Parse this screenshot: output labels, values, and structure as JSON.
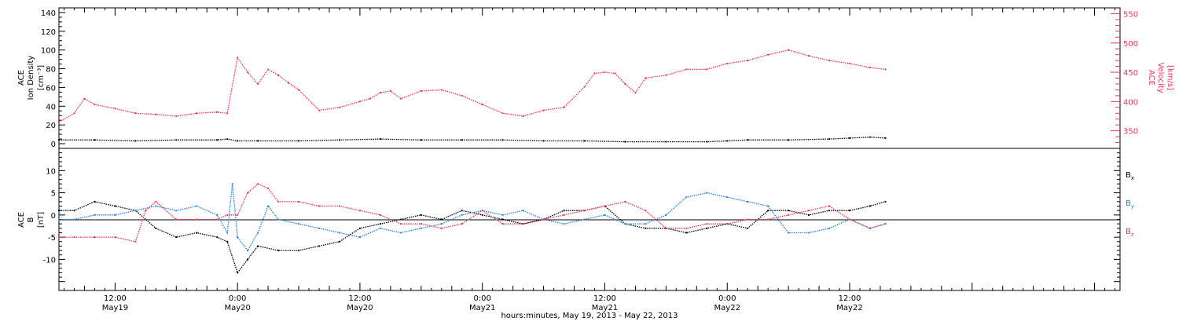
{
  "colors": {
    "black": "#000000",
    "pink": "#e8335e",
    "blue": "#1e82e0"
  },
  "x_axis": {
    "label": "hours:minutes, May 19, 2013 - May 22, 2013",
    "range_hours": [
      6.5,
      110.5
    ],
    "major_ticks": [
      {
        "hour": 12,
        "time": "12:00",
        "date": "May19"
      },
      {
        "hour": 24,
        "time": "0:00",
        "date": "May20"
      },
      {
        "hour": 36,
        "time": "12:00",
        "date": "May20"
      },
      {
        "hour": 48,
        "time": "0:00",
        "date": "May21"
      },
      {
        "hour": 60,
        "time": "12:00",
        "date": "May21"
      },
      {
        "hour": 72,
        "time": "0:00",
        "date": "May22"
      },
      {
        "hour": 84,
        "time": "12:00",
        "date": "May22"
      }
    ]
  },
  "top_panel": {
    "left_axis": {
      "line1": "ACE",
      "line2": "Ion Density",
      "line3": "[cm⁻³]",
      "ylim": [
        -5,
        145
      ],
      "ticks": [
        "0",
        "20",
        "40",
        "60",
        "80",
        "100",
        "120",
        "140"
      ]
    },
    "right_axis": {
      "line1": "ACE",
      "line2": "Velocity",
      "line3": "[km/s]",
      "ylim": [
        320,
        560
      ],
      "ticks": [
        "350",
        "400",
        "450",
        "500",
        "550"
      ]
    }
  },
  "bottom_panel": {
    "axis": {
      "line1": "ACE",
      "line2": "B",
      "line3": "[nT]",
      "ylim": [
        -17,
        15
      ],
      "ticks": [
        "-10",
        "-5",
        "0",
        "5",
        "10"
      ]
    },
    "legend": {
      "bx": "B",
      "bx_sub": "x",
      "by": "B",
      "by_sub": "y",
      "bz": "B",
      "bz_sub": "z"
    }
  },
  "chart_data": [
    {
      "type": "scatter",
      "title": "",
      "xlabel": "hours:minutes, May 19, 2013 - May 22, 2013",
      "ylabel": "ACE Ion Density [cm-3]",
      "ylim": [
        -5,
        145
      ],
      "series": [
        {
          "name": "Ion Density",
          "color": "#000000",
          "x": [
            6.5,
            10,
            14,
            18,
            22,
            23,
            24,
            26,
            30,
            34,
            38,
            42,
            46,
            50,
            54,
            58,
            62,
            66,
            70,
            72,
            74,
            78,
            82,
            84,
            86,
            87.5
          ],
          "y": [
            4,
            4,
            3,
            4,
            4,
            5,
            3,
            3,
            3,
            4,
            5,
            4,
            4,
            4,
            3,
            3,
            2,
            2,
            2,
            3,
            4,
            4,
            5,
            6,
            7,
            6
          ]
        }
      ]
    },
    {
      "type": "scatter",
      "ylabel": "ACE Velocity [km/s]",
      "ylim": [
        320,
        560
      ],
      "series": [
        {
          "name": "Velocity",
          "color": "#e8335e",
          "x": [
            6.5,
            8,
            9,
            10,
            12,
            14,
            16,
            18,
            20,
            22,
            23,
            24,
            25,
            26,
            27,
            28,
            29,
            30,
            32,
            34,
            36,
            37,
            38,
            39,
            40,
            42,
            44,
            46,
            48,
            50,
            52,
            54,
            56,
            58,
            59,
            60,
            61,
            62,
            63,
            64,
            66,
            68,
            70,
            72,
            74,
            76,
            78,
            80,
            82,
            84,
            86,
            87.5
          ],
          "y": [
            365,
            380,
            405,
            395,
            388,
            380,
            378,
            375,
            380,
            382,
            380,
            475,
            450,
            430,
            455,
            445,
            432,
            420,
            385,
            390,
            400,
            405,
            415,
            418,
            405,
            418,
            420,
            410,
            395,
            380,
            375,
            385,
            390,
            425,
            448,
            450,
            448,
            430,
            415,
            440,
            445,
            455,
            455,
            465,
            470,
            480,
            488,
            478,
            470,
            465,
            458,
            455
          ]
        }
      ]
    },
    {
      "type": "scatter",
      "ylabel": "ACE B [nT]",
      "ylim": [
        -17,
        15
      ],
      "series": [
        {
          "name": "Bx",
          "color": "#000000",
          "x": [
            6.5,
            8,
            10,
            12,
            14,
            16,
            18,
            20,
            22,
            23,
            24,
            25,
            26,
            28,
            30,
            32,
            34,
            36,
            38,
            40,
            42,
            44,
            46,
            48,
            50,
            52,
            54,
            56,
            58,
            60,
            62,
            64,
            66,
            68,
            70,
            72,
            74,
            76,
            78,
            80,
            82,
            84,
            86,
            87.5
          ],
          "y": [
            1,
            1,
            3,
            2,
            1,
            -3,
            -5,
            -4,
            -5,
            -6,
            -13,
            -10,
            -7,
            -8,
            -8,
            -7,
            -6,
            -3,
            -2,
            -1,
            0,
            -1,
            1,
            0,
            -1,
            -2,
            -1,
            1,
            1,
            2,
            -2,
            -3,
            -3,
            -4,
            -3,
            -2,
            -3,
            1,
            1,
            0,
            1,
            1,
            2,
            3
          ]
        },
        {
          "name": "By",
          "color": "#1e82e0",
          "x": [
            6.5,
            8,
            10,
            12,
            14,
            16,
            18,
            20,
            22,
            23,
            23.5,
            24,
            25,
            26,
            27,
            28,
            30,
            32,
            34,
            36,
            38,
            40,
            42,
            44,
            46,
            48,
            50,
            52,
            54,
            56,
            58,
            60,
            62,
            64,
            66,
            68,
            70,
            72,
            74,
            76,
            78,
            80,
            82,
            84,
            86,
            87.5
          ],
          "y": [
            -1,
            -1,
            0,
            0,
            1,
            2,
            1,
            2,
            0,
            -4,
            7,
            -5,
            -8,
            -4,
            2,
            -1,
            -2,
            -3,
            -4,
            -5,
            -3,
            -4,
            -3,
            -2,
            0,
            1,
            0,
            1,
            -1,
            -2,
            -1,
            0,
            -2,
            -2,
            0,
            4,
            5,
            4,
            3,
            2,
            -4,
            -4,
            -3,
            -1,
            -3,
            -2
          ]
        },
        {
          "name": "Bz",
          "color": "#e8335e",
          "x": [
            6.5,
            8,
            10,
            12,
            14,
            15,
            16,
            18,
            20,
            22,
            23,
            24,
            25,
            26,
            27,
            28,
            30,
            32,
            34,
            36,
            38,
            40,
            42,
            44,
            46,
            48,
            50,
            52,
            54,
            56,
            58,
            60,
            62,
            64,
            66,
            68,
            70,
            72,
            74,
            76,
            78,
            80,
            82,
            84,
            86,
            87.5
          ],
          "y": [
            -5,
            -5,
            -5,
            -5,
            -6,
            1,
            3,
            -1,
            -1,
            -1,
            0,
            0,
            5,
            7,
            6,
            3,
            3,
            2,
            2,
            1,
            0,
            -2,
            -2,
            -3,
            -2,
            1,
            -2,
            -2,
            -1,
            0,
            1,
            2,
            3,
            1,
            -3,
            -3,
            -2,
            -2,
            -1,
            -1,
            0,
            1,
            2,
            -1,
            -3,
            -2
          ]
        }
      ]
    }
  ]
}
